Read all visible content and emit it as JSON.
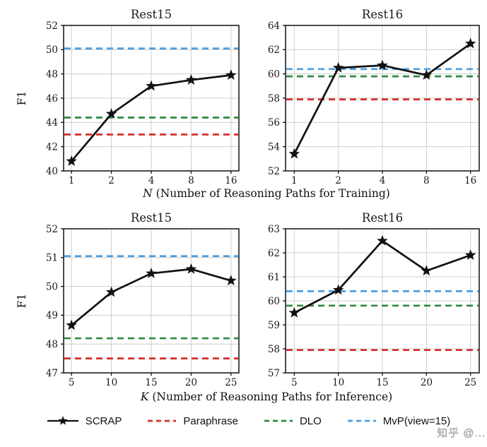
{
  "colors": {
    "scrap": "#111111",
    "paraphrase": "#d92b2b",
    "dlo": "#2d8a3e",
    "mvp": "#4a9ee0",
    "grid": "#cdcdcd",
    "spine": "#111111",
    "text": "#1a1a1a",
    "watermark": "#9a9a9a"
  },
  "chart_data": [
    {
      "type": "line",
      "title": "Rest15",
      "ylabel": "F1",
      "x_tick_labels": [
        "1",
        "2",
        "4",
        "8",
        "16"
      ],
      "ylim": [
        40,
        52
      ],
      "ytick_step": 2,
      "grid": true,
      "series": [
        {
          "name": "SCRAP",
          "values": [
            40.8,
            44.7,
            47.0,
            47.5,
            47.9
          ],
          "color_key": "scrap",
          "style": "solid-star"
        }
      ],
      "baselines": [
        {
          "name": "Paraphrase",
          "value": 43.0,
          "color_key": "paraphrase"
        },
        {
          "name": "DLO",
          "value": 44.4,
          "color_key": "dlo"
        },
        {
          "name": "MvP(view=15)",
          "value": 50.1,
          "color_key": "mvp"
        }
      ]
    },
    {
      "type": "line",
      "title": "Rest16",
      "ylabel": "",
      "x_tick_labels": [
        "1",
        "2",
        "4",
        "8",
        "16"
      ],
      "ylim": [
        52,
        64
      ],
      "ytick_step": 2,
      "grid": true,
      "series": [
        {
          "name": "SCRAP",
          "values": [
            53.4,
            60.5,
            60.7,
            59.9,
            62.5
          ],
          "color_key": "scrap",
          "style": "solid-star"
        }
      ],
      "baselines": [
        {
          "name": "Paraphrase",
          "value": 57.9,
          "color_key": "paraphrase"
        },
        {
          "name": "DLO",
          "value": 59.8,
          "color_key": "dlo"
        },
        {
          "name": "MvP(view=15)",
          "value": 60.4,
          "color_key": "mvp"
        }
      ]
    },
    {
      "type": "line",
      "title": "Rest15",
      "ylabel": "F1",
      "x_tick_labels": [
        "5",
        "10",
        "15",
        "20",
        "25"
      ],
      "ylim": [
        47,
        52
      ],
      "ytick_step": 1,
      "grid": true,
      "series": [
        {
          "name": "SCRAP",
          "values": [
            48.65,
            49.8,
            50.45,
            50.6,
            50.2
          ],
          "color_key": "scrap",
          "style": "solid-star"
        }
      ],
      "baselines": [
        {
          "name": "Paraphrase",
          "value": 47.5,
          "color_key": "paraphrase"
        },
        {
          "name": "DLO",
          "value": 48.2,
          "color_key": "dlo"
        },
        {
          "name": "MvP(view=15)",
          "value": 51.05,
          "color_key": "mvp"
        }
      ]
    },
    {
      "type": "line",
      "title": "Rest16",
      "ylabel": "",
      "x_tick_labels": [
        "5",
        "10",
        "15",
        "20",
        "25"
      ],
      "ylim": [
        57,
        63
      ],
      "ytick_step": 1,
      "grid": true,
      "series": [
        {
          "name": "SCRAP",
          "values": [
            59.5,
            60.45,
            62.5,
            61.25,
            61.9
          ],
          "color_key": "scrap",
          "style": "solid-star"
        }
      ],
      "baselines": [
        {
          "name": "Paraphrase",
          "value": 57.95,
          "color_key": "paraphrase"
        },
        {
          "name": "DLO",
          "value": 59.8,
          "color_key": "dlo"
        },
        {
          "name": "MvP(view=15)",
          "value": 60.4,
          "color_key": "mvp"
        }
      ]
    }
  ],
  "rows": [
    {
      "variable": "N",
      "label_rest": " (Number of Reasoning Paths for Training)"
    },
    {
      "variable": "K",
      "label_rest": " (Number of Reasoning Paths for Inference)"
    }
  ],
  "legend": {
    "items": [
      {
        "label": "SCRAP",
        "type": "line-star",
        "color_key": "scrap"
      },
      {
        "label": "Paraphrase",
        "type": "dashed",
        "color_key": "paraphrase"
      },
      {
        "label": "DLO",
        "type": "dashed",
        "color_key": "dlo"
      },
      {
        "label": "MvP(view=15)",
        "type": "dashed",
        "color_key": "mvp"
      }
    ]
  },
  "watermark": {
    "text": "知乎 @..."
  }
}
